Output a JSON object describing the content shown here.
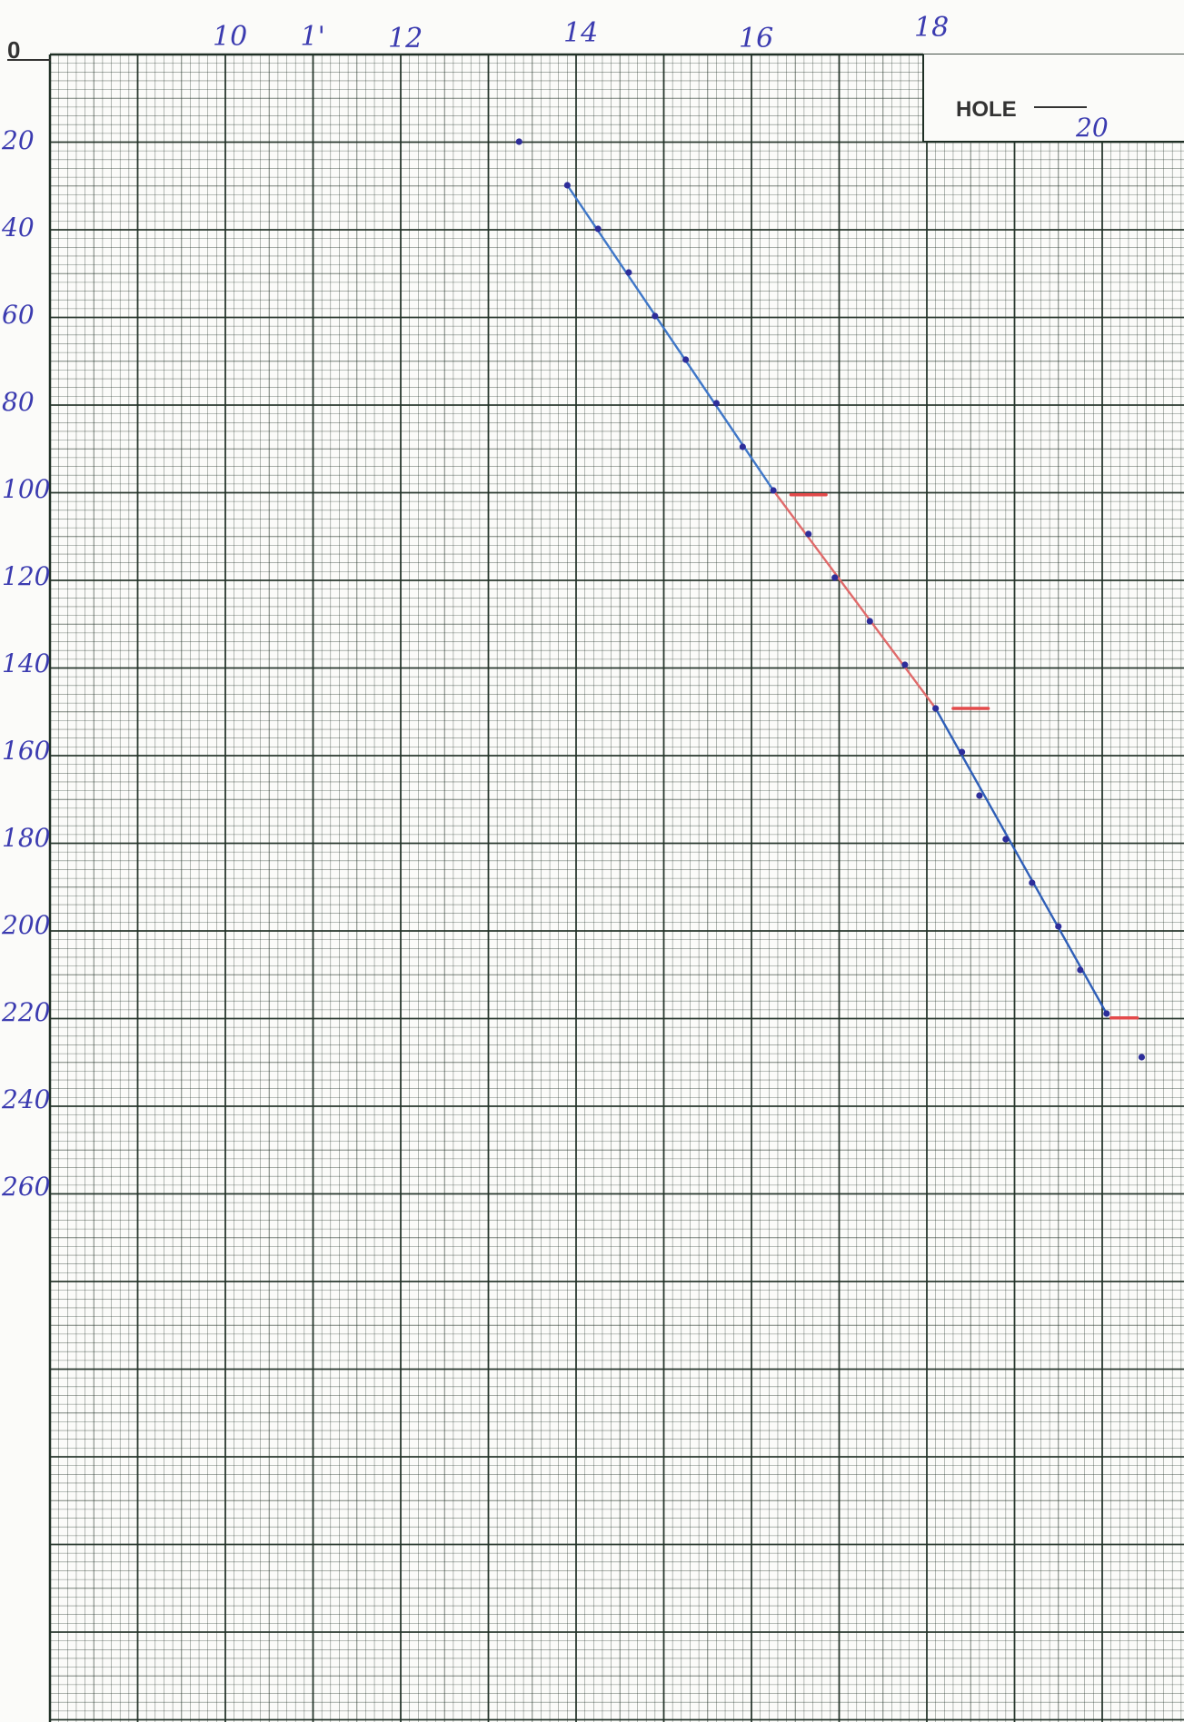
{
  "chart_data": {
    "type": "scatter",
    "origin_label": "0",
    "x_tick_labels": [
      "10",
      "1'",
      "12",
      "14",
      "16",
      "18",
      "20"
    ],
    "y_tick_labels": [
      "20",
      "40",
      "60",
      "80",
      "100",
      "120",
      "140",
      "160",
      "180",
      "200",
      "220",
      "240",
      "260"
    ],
    "xlim": [
      8,
      20.5
    ],
    "ylim": [
      0,
      390
    ],
    "hole_label": "HOLE",
    "hole_value": "20",
    "grid": true,
    "y_axis_reversed": true,
    "points": [
      {
        "x": 13.35,
        "y": 20
      },
      {
        "x": 13.9,
        "y": 30
      },
      {
        "x": 14.25,
        "y": 40
      },
      {
        "x": 14.6,
        "y": 50
      },
      {
        "x": 14.9,
        "y": 60
      },
      {
        "x": 15.25,
        "y": 70
      },
      {
        "x": 15.6,
        "y": 80
      },
      {
        "x": 15.9,
        "y": 90
      },
      {
        "x": 16.25,
        "y": 100
      },
      {
        "x": 16.65,
        "y": 110
      },
      {
        "x": 16.95,
        "y": 120
      },
      {
        "x": 17.35,
        "y": 130
      },
      {
        "x": 17.75,
        "y": 140
      },
      {
        "x": 18.1,
        "y": 150
      },
      {
        "x": 18.4,
        "y": 160
      },
      {
        "x": 18.6,
        "y": 170
      },
      {
        "x": 18.9,
        "y": 180
      },
      {
        "x": 19.2,
        "y": 190
      },
      {
        "x": 19.5,
        "y": 200
      },
      {
        "x": 19.75,
        "y": 210
      },
      {
        "x": 20.05,
        "y": 220
      },
      {
        "x": 20.45,
        "y": 230
      }
    ],
    "segments": [
      {
        "name": "upper",
        "color": "#3f77c8",
        "from": {
          "x": 13.9,
          "y": 30
        },
        "to": {
          "x": 16.25,
          "y": 100
        }
      },
      {
        "name": "middle",
        "color": "#e06a6a",
        "from": {
          "x": 16.25,
          "y": 100
        },
        "to": {
          "x": 18.1,
          "y": 150
        }
      },
      {
        "name": "lower",
        "color": "#2f5fb8",
        "from": {
          "x": 18.1,
          "y": 150
        },
        "to": {
          "x": 20.05,
          "y": 220
        }
      }
    ],
    "ticks_red": [
      {
        "x1": 16.45,
        "x2": 16.85,
        "y": 101
      },
      {
        "x1": 18.3,
        "x2": 18.7,
        "y": 150
      },
      {
        "x1": 20.1,
        "x2": 20.4,
        "y": 221
      }
    ],
    "colors": {
      "grid": "#1f2f25",
      "ink": "#2d2d9a",
      "red": "#e34a4a",
      "paper": "#fbfbf9"
    }
  }
}
